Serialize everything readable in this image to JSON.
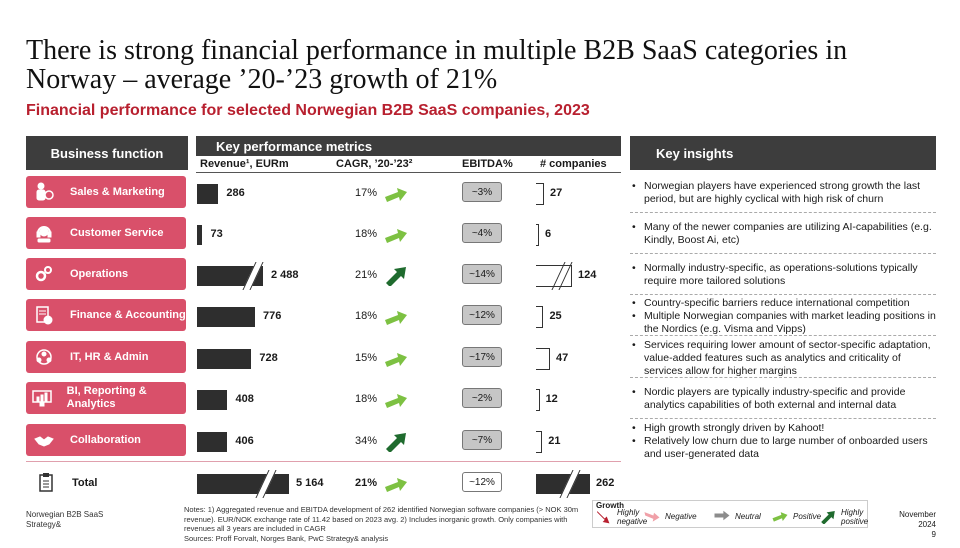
{
  "title": "There is strong financial performance in multiple B2B SaaS categories in Norway – average ’20-’23 growth of 21%",
  "subtitle": "Financial performance for selected Norwegian B2B SaaS companies, 2023",
  "headers": {
    "business_function": "Business function",
    "key_metrics": "Key performance metrics",
    "key_insights": "Key insights",
    "revenue": "Revenue¹, EURm",
    "cagr": "CAGR, ’20-’23²",
    "ebitda": "EBITDA%",
    "companies": "# companies"
  },
  "rows": [
    {
      "name": "Sales & Marketing",
      "icon": "person-money-icon",
      "revenue": "286",
      "revenue_value": 286,
      "cagr": "17%",
      "growth": "positive",
      "ebitda": "~3%",
      "companies": "27",
      "companies_value": 27,
      "insights": [
        "Norwegian players have experienced strong growth the last period, but are highly cyclical with high risk of churn"
      ]
    },
    {
      "name": "Customer Service",
      "icon": "headset-icon",
      "revenue": "73",
      "revenue_value": 73,
      "cagr": "18%",
      "growth": "positive",
      "ebitda": "~4%",
      "companies": "6",
      "companies_value": 6,
      "insights": [
        "Many of the newer companies are utilizing AI-capabilities (e.g. Kindly, Boost Ai, etc)"
      ]
    },
    {
      "name": "Operations",
      "icon": "gears-icon",
      "revenue": "2 488",
      "revenue_value": 2488,
      "cagr": "21%",
      "growth": "highly-positive",
      "ebitda": "~14%",
      "companies": "124",
      "companies_value": 124,
      "insights": [
        "Normally industry-specific, as operations-solutions typically require more tailored solutions"
      ]
    },
    {
      "name": "Finance & Accounting",
      "icon": "document-money-icon",
      "revenue": "776",
      "revenue_value": 776,
      "cagr": "18%",
      "growth": "positive",
      "ebitda": "~12%",
      "companies": "25",
      "companies_value": 25,
      "insights": [
        "Country-specific barriers reduce international competition",
        "Multiple Norwegian companies with market leading positions in the Nordics (e.g. Visma and Vipps)"
      ]
    },
    {
      "name": "IT, HR & Admin",
      "icon": "people-network-icon",
      "revenue": "728",
      "revenue_value": 728,
      "cagr": "15%",
      "growth": "positive",
      "ebitda": "~17%",
      "companies": "47",
      "companies_value": 47,
      "insights": [
        "Services requiring lower amount of sector-specific adaptation, value-added features such as analytics and criticality of services allow for higher margins"
      ]
    },
    {
      "name": "BI, Reporting & Analytics",
      "icon": "monitor-chart-icon",
      "revenue": "408",
      "revenue_value": 408,
      "cagr": "18%",
      "growth": "positive",
      "ebitda": "~2%",
      "companies": "12",
      "companies_value": 12,
      "insights": [
        "Nordic players are typically industry-specific and provide analytics capabilities of both external and internal data"
      ]
    },
    {
      "name": "Collaboration",
      "icon": "handshake-icon",
      "revenue": "406",
      "revenue_value": 406,
      "cagr": "34%",
      "growth": "highly-positive",
      "ebitda": "~7%",
      "companies": "21",
      "companies_value": 21,
      "insights": [
        "High growth strongly driven by Kahoot!",
        "Relatively low churn due to large number of onboarded users and user-generated data"
      ]
    }
  ],
  "total": {
    "name": "Total",
    "icon": "clipboard-icon",
    "revenue": "5 164",
    "revenue_value": 5164,
    "cagr": "21%",
    "growth": "positive",
    "ebitda": "~12%",
    "companies": "262",
    "companies_value": 262
  },
  "legend": {
    "title": "Growth",
    "items": [
      {
        "label": "Highly negative",
        "key": "highly-negative",
        "color": "#b8202f"
      },
      {
        "label": "Negative",
        "key": "negative",
        "color": "#f0a0a8"
      },
      {
        "label": "Neutral",
        "key": "neutral",
        "color": "#8c8c8c"
      },
      {
        "label": "Positive",
        "key": "positive",
        "color": "#7dc142"
      },
      {
        "label": "Highly positive",
        "key": "highly-positive",
        "color": "#1f6b2e"
      }
    ]
  },
  "footer": {
    "source_left": "Norwegian B2B SaaS Strategy&",
    "notes": "Notes: 1) Aggregated revenue and EBITDA development of 262 identified Norwegian software companies (> NOK 30m revenue). EUR/NOK exchange rate of 11.42 based on 2023 avg. 2) Includes inorganic growth. Only companies with revenues all 3 years are included in CAGR",
    "sources": "Sources: Proff Forvalt, Norges Bank, PwC Strategy& analysis",
    "date": "November 2024",
    "page": "9"
  },
  "colors": {
    "accent_red": "#b8202f",
    "function_pink": "#d9506a",
    "header_dark": "#3d3d3d",
    "bar_dark": "#2e2e2e"
  }
}
